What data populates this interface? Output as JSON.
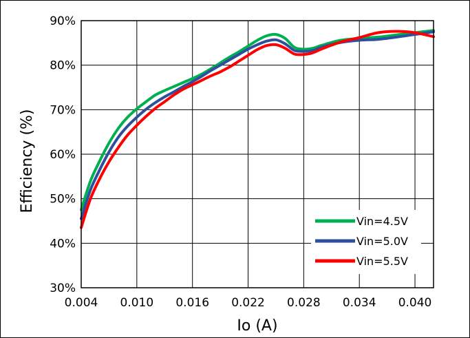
{
  "chart_data": {
    "type": "line",
    "title": "",
    "xlabel": "Io (A)",
    "ylabel": "Efficiency  (%)",
    "xlim": [
      0.004,
      0.042
    ],
    "ylim": [
      30,
      90
    ],
    "x_ticks": [
      0.004,
      0.01,
      0.016,
      0.022,
      0.028,
      0.034,
      0.04
    ],
    "x_tick_labels": [
      "0.004",
      "0.010",
      "0.016",
      "0.022",
      "0.028",
      "0.034",
      "0.040"
    ],
    "y_ticks": [
      30,
      40,
      50,
      60,
      70,
      80,
      90
    ],
    "y_tick_labels": [
      "30%",
      "40%",
      "50%",
      "60%",
      "70%",
      "80%",
      "90%"
    ],
    "grid": true,
    "legend": "bottom-right",
    "series": [
      {
        "name": "Vin=4.5V",
        "color": "#00b050",
        "x": [
          0.004,
          0.005,
          0.006,
          0.007,
          0.008,
          0.009,
          0.01,
          0.011,
          0.012,
          0.013,
          0.014,
          0.015,
          0.016,
          0.017,
          0.018,
          0.019,
          0.02,
          0.021,
          0.022,
          0.023,
          0.024,
          0.025,
          0.026,
          0.027,
          0.028,
          0.029,
          0.03,
          0.032,
          0.034,
          0.036,
          0.038,
          0.04,
          0.042
        ],
        "y": [
          47.5,
          54,
          58.5,
          62.5,
          65.8,
          68.3,
          70.2,
          71.8,
          73.3,
          74.3,
          75.2,
          76.1,
          77.0,
          78.0,
          79.2,
          80.5,
          81.8,
          83.0,
          84.3,
          85.6,
          86.6,
          86.9,
          86.0,
          84.0,
          83.6,
          83.8,
          84.5,
          85.6,
          86.0,
          86.3,
          86.8,
          87.3,
          87.8
        ]
      },
      {
        "name": "Vin=5.0V",
        "color": "#2e4f9e",
        "x": [
          0.004,
          0.005,
          0.006,
          0.007,
          0.008,
          0.009,
          0.01,
          0.011,
          0.012,
          0.013,
          0.014,
          0.015,
          0.016,
          0.017,
          0.018,
          0.019,
          0.02,
          0.021,
          0.022,
          0.023,
          0.024,
          0.025,
          0.026,
          0.027,
          0.028,
          0.029,
          0.03,
          0.032,
          0.034,
          0.036,
          0.038,
          0.04,
          0.042
        ],
        "y": [
          45.5,
          52,
          56.5,
          60.5,
          63.8,
          66.3,
          68.3,
          70.1,
          71.6,
          72.9,
          74.0,
          75.2,
          76.3,
          77.5,
          78.8,
          80.0,
          81.2,
          82.4,
          83.6,
          84.6,
          85.4,
          85.7,
          84.8,
          83.3,
          83.1,
          83.3,
          84.1,
          85.1,
          85.6,
          85.8,
          86.3,
          86.9,
          87.5
        ]
      },
      {
        "name": "Vin=5.5V",
        "color": "#ff0000",
        "x": [
          0.004,
          0.005,
          0.006,
          0.007,
          0.008,
          0.009,
          0.01,
          0.011,
          0.012,
          0.013,
          0.014,
          0.015,
          0.016,
          0.017,
          0.018,
          0.019,
          0.02,
          0.021,
          0.022,
          0.023,
          0.024,
          0.025,
          0.026,
          0.027,
          0.028,
          0.029,
          0.03,
          0.032,
          0.034,
          0.036,
          0.038,
          0.04,
          0.042
        ],
        "y": [
          43.5,
          50,
          54.5,
          58.3,
          61.5,
          64.3,
          66.5,
          68.5,
          70.3,
          71.8,
          73.3,
          74.6,
          75.6,
          76.6,
          77.6,
          78.5,
          79.6,
          80.9,
          82.2,
          83.5,
          84.4,
          84.6,
          83.8,
          82.5,
          82.4,
          82.8,
          83.7,
          85.2,
          86.2,
          87.3,
          87.6,
          87.3,
          86.4
        ]
      }
    ]
  }
}
